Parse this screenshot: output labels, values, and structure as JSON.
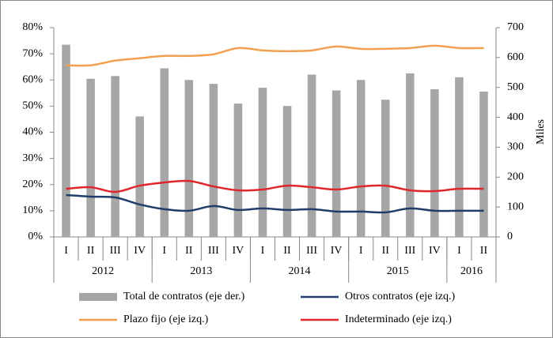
{
  "chart_data": {
    "type": "bar-line",
    "categories": [
      "I",
      "II",
      "III",
      "IV",
      "I",
      "II",
      "III",
      "IV",
      "I",
      "II",
      "III",
      "IV",
      "I",
      "II",
      "III",
      "IV",
      "I",
      "II"
    ],
    "groups": [
      {
        "name": "2012",
        "count": 4
      },
      {
        "name": "2013",
        "count": 4
      },
      {
        "name": "2014",
        "count": 4
      },
      {
        "name": "2015",
        "count": 4
      },
      {
        "name": "2016",
        "count": 2
      }
    ],
    "series": [
      {
        "name": "Total de contratos (eje der.)",
        "type": "bar",
        "axis": "y2",
        "color": "#a6a6a6",
        "values": [
          643,
          529,
          538,
          403,
          564,
          525,
          512,
          446,
          499,
          438,
          543,
          490,
          525,
          459,
          547,
          494,
          534,
          486
        ]
      },
      {
        "name": "Otros contratos (eje izq.)",
        "type": "line",
        "color": "#1f3d6b",
        "values": [
          16.0,
          15.4,
          15.1,
          12.4,
          10.6,
          10.0,
          11.8,
          10.3,
          10.9,
          10.3,
          10.6,
          9.7,
          9.7,
          9.4,
          10.9,
          10.0,
          10.0,
          10.0
        ]
      },
      {
        "name": "Plazo fijo (eje izq.)",
        "type": "line",
        "color": "#f0a050",
        "values": [
          65.6,
          65.6,
          67.4,
          68.3,
          69.2,
          69.2,
          69.8,
          72.2,
          71.3,
          71.0,
          71.3,
          72.8,
          71.9,
          71.9,
          72.2,
          73.1,
          72.2,
          72.2
        ]
      },
      {
        "name": "Indeterminado (eje izq.)",
        "type": "line",
        "color": "#e0262a",
        "values": [
          18.4,
          19.0,
          17.2,
          19.6,
          20.8,
          21.4,
          19.3,
          17.8,
          18.1,
          19.6,
          19.0,
          18.1,
          19.3,
          19.6,
          17.8,
          17.5,
          18.4,
          18.4
        ]
      }
    ],
    "ylim": [
      0,
      80
    ],
    "yticks": [
      {
        "value": 0,
        "label": "0%"
      },
      {
        "value": 10,
        "label": "10%"
      },
      {
        "value": 20,
        "label": "20%"
      },
      {
        "value": 30,
        "label": "30%"
      },
      {
        "value": 40,
        "label": "40%"
      },
      {
        "value": 50,
        "label": "50%"
      },
      {
        "value": 60,
        "label": "60%"
      },
      {
        "value": 70,
        "label": "70%"
      },
      {
        "value": 80,
        "label": "80%"
      }
    ],
    "y2lim": [
      0,
      700
    ],
    "y2ticks": [
      0,
      100,
      200,
      300,
      400,
      500,
      600,
      700
    ],
    "y2label": "Miles"
  }
}
